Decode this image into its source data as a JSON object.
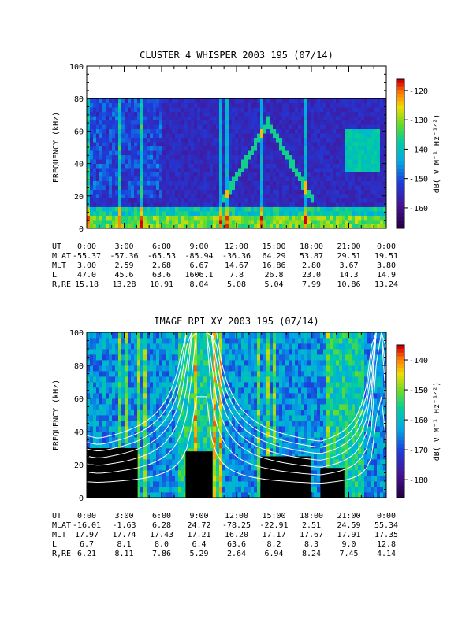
{
  "chart_data": [
    {
      "type": "heatmap",
      "title": "CLUSTER 4 WHISPER 2003 195 (07/14)",
      "ylabel": "FREQUENCY (kHz)",
      "ylim": [
        0,
        100
      ],
      "yticks": [
        "0",
        "20",
        "40",
        "60",
        "80",
        "100"
      ],
      "data_ceiling_khz": 80,
      "colorbar": {
        "label": "dB( V M⁻¹ Hz⁻¹ᐟ²)",
        "ticks": [
          "-120",
          "-130",
          "-140",
          "-150",
          "-160"
        ],
        "range": [
          -167,
          -116
        ]
      },
      "ephemeris": {
        "UT": [
          "0:00",
          "3:00",
          "6:00",
          "9:00",
          "12:00",
          "15:00",
          "18:00",
          "21:00",
          "0:00"
        ],
        "MLAT": [
          "-55.37",
          "-57.36",
          "-65.53",
          "-85.94",
          "-36.36",
          "64.29",
          "53.87",
          "29.51",
          "19.51"
        ],
        "MLT": [
          "3.00",
          "2.59",
          "2.68",
          "6.67",
          "14.67",
          "16.86",
          "2.80",
          "3.67",
          "3.80"
        ],
        "L": [
          "47.0",
          "45.6",
          "63.6",
          "1606.1",
          "7.8",
          "26.8",
          "23.0",
          "14.3",
          "14.9"
        ],
        "R,RE": [
          "15.18",
          "13.28",
          "10.91",
          "8.04",
          "5.08",
          "5.04",
          "7.99",
          "10.86",
          "13.24"
        ]
      }
    },
    {
      "type": "heatmap",
      "title": "IMAGE RPI XY 2003 195 (07/14)",
      "ylabel": "FREQUENCY (kHz)",
      "ylim": [
        0,
        100
      ],
      "yticks": [
        "0",
        "20",
        "40",
        "60",
        "80",
        "100"
      ],
      "colorbar": {
        "label": "dB( V M⁻¹ Hz⁻¹ᐟ²)",
        "ticks": [
          "-140",
          "-150",
          "-160",
          "-170",
          "-180"
        ],
        "range": [
          -186,
          -135
        ]
      },
      "ephemeris": {
        "UT": [
          "0:00",
          "3:00",
          "6:00",
          "9:00",
          "12:00",
          "15:00",
          "18:00",
          "21:00",
          "0:00"
        ],
        "MLAT": [
          "-16.01",
          "-1.63",
          "6.28",
          "24.72",
          "-78.25",
          "-22.91",
          "2.51",
          "24.59",
          "55.34"
        ],
        "MLT": [
          "17.97",
          "17.74",
          "17.43",
          "17.21",
          "16.20",
          "17.17",
          "17.67",
          "17.91",
          "17.35"
        ],
        "L": [
          "6.7",
          "8.1",
          "8.0",
          "6.4",
          "63.6",
          "8.2",
          "8.3",
          "9.0",
          "12.8"
        ],
        "R,RE": [
          "6.21",
          "8.11",
          "7.86",
          "5.29",
          "2.64",
          "6.94",
          "8.24",
          "7.45",
          "4.14"
        ]
      }
    }
  ],
  "ephem_labels": [
    "UT",
    "MLAT",
    "MLT",
    "L",
    "R,RE"
  ]
}
